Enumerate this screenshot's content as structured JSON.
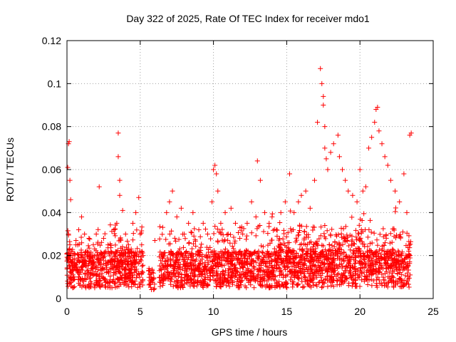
{
  "chart_data": {
    "type": "scatter",
    "title": "Day 322 of 2025, Rate Of TEC Index for receiver mdo1",
    "xlabel": "GPS time / hours",
    "ylabel": "ROTI / TECUs",
    "xlim": [
      0,
      25
    ],
    "ylim": [
      0,
      0.12
    ],
    "x_ticks": [
      0,
      5,
      10,
      15,
      20,
      25
    ],
    "x_tick_labels": [
      "0",
      "5",
      "10",
      "15",
      "20",
      "25"
    ],
    "y_ticks": [
      0,
      0.02,
      0.04,
      0.06,
      0.08,
      0.1,
      0.12
    ],
    "y_tick_labels": [
      "0",
      "0.02",
      "0.04",
      "0.06",
      "0.08",
      "0.1",
      "0.12"
    ],
    "grid": true,
    "marker": "plus",
    "color": "#ff0000",
    "series": [
      {
        "x": [
          0.05,
          0.1,
          0.15,
          0.2,
          0.25,
          0.1,
          0.2,
          0.3,
          0.05,
          0.15,
          0.25,
          0.4,
          0.6,
          0.8,
          1.0,
          1.2,
          1.5,
          1.8,
          2.0,
          2.2,
          2.5,
          2.8,
          3.0,
          3.2,
          3.4,
          3.5,
          3.5,
          3.6,
          3.6,
          3.8,
          4.0,
          4.2,
          4.5,
          4.7,
          4.9,
          5.0,
          5.1,
          5.2,
          5.6,
          5.8,
          6.0,
          6.5,
          6.8,
          7.0,
          7.2,
          7.5,
          7.8,
          8.0,
          8.3,
          8.6,
          9.0,
          9.3,
          9.6,
          9.9,
          10.0,
          10.1,
          10.2,
          10.3,
          10.5,
          10.8,
          11.0,
          11.2,
          11.5,
          11.8,
          12.0,
          12.3,
          12.6,
          12.9,
          13.0,
          13.2,
          13.5,
          13.8,
          14.0,
          14.3,
          14.6,
          14.9,
          15.2,
          15.5,
          15.8,
          16.0,
          16.3,
          16.6,
          16.9,
          17.1,
          17.3,
          17.4,
          17.5,
          17.5,
          17.6,
          17.6,
          17.7,
          17.8,
          18.0,
          18.2,
          18.5,
          18.6,
          18.8,
          19.0,
          19.2,
          19.5,
          19.8,
          20.0,
          20.2,
          20.4,
          20.6,
          20.8,
          21.0,
          21.1,
          21.2,
          21.3,
          21.5,
          21.7,
          21.9,
          22.1,
          22.4,
          22.7,
          23.0,
          23.2,
          23.4,
          23.5
        ],
        "y": [
          0.061,
          0.072,
          0.073,
          0.055,
          0.046,
          0.03,
          0.025,
          0.022,
          0.018,
          0.015,
          0.012,
          0.02,
          0.025,
          0.032,
          0.038,
          0.03,
          0.028,
          0.025,
          0.03,
          0.052,
          0.028,
          0.025,
          0.022,
          0.032,
          0.035,
          0.077,
          0.066,
          0.055,
          0.048,
          0.041,
          0.03,
          0.025,
          0.035,
          0.04,
          0.047,
          0.03,
          0.025,
          0.02,
          0.014,
          0.012,
          0.027,
          0.02,
          0.04,
          0.045,
          0.05,
          0.038,
          0.042,
          0.03,
          0.035,
          0.04,
          0.032,
          0.035,
          0.03,
          0.045,
          0.06,
          0.062,
          0.058,
          0.05,
          0.035,
          0.04,
          0.03,
          0.042,
          0.035,
          0.028,
          0.03,
          0.035,
          0.045,
          0.038,
          0.064,
          0.055,
          0.04,
          0.035,
          0.038,
          0.032,
          0.04,
          0.045,
          0.058,
          0.04,
          0.045,
          0.048,
          0.05,
          0.042,
          0.055,
          0.082,
          0.107,
          0.1,
          0.094,
          0.09,
          0.08,
          0.07,
          0.065,
          0.06,
          0.068,
          0.072,
          0.076,
          0.066,
          0.06,
          0.055,
          0.05,
          0.048,
          0.045,
          0.06,
          0.05,
          0.052,
          0.07,
          0.075,
          0.082,
          0.088,
          0.089,
          0.078,
          0.072,
          0.066,
          0.062,
          0.055,
          0.05,
          0.045,
          0.058,
          0.04,
          0.076,
          0.077
        ]
      }
    ]
  }
}
